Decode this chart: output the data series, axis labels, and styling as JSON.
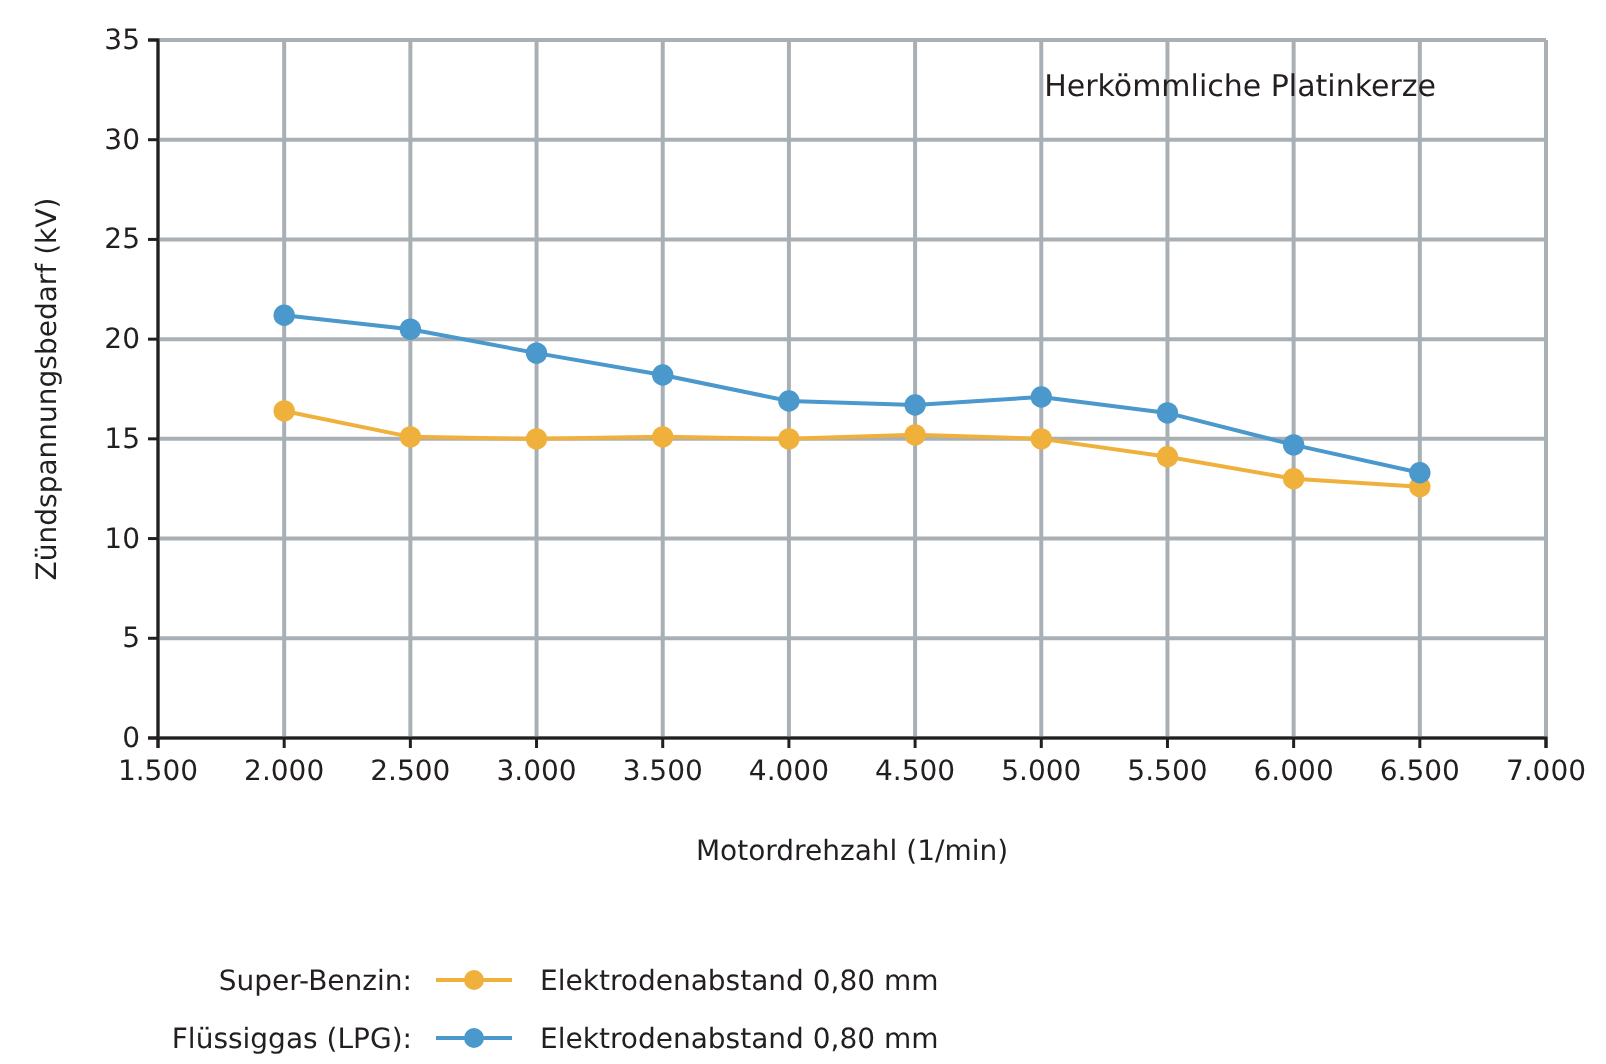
{
  "chart_data": {
    "type": "line",
    "xlabel": "Motordrehzahl (1/min)",
    "ylabel": "Zündspannungsbedarf (kV)",
    "annotations": [
      "Herkömmliche Platinkerze",
      "Super-Benzin:",
      "Flüssiggas (LPG):"
    ],
    "x": [
      2000,
      2500,
      3000,
      3500,
      4000,
      4500,
      5000,
      5500,
      6000,
      6500
    ],
    "series": [
      {
        "name": "Elektrodenabstand 0,80 mm",
        "color": "#f0b03c",
        "values": [
          16.4,
          15.1,
          15.0,
          15.1,
          15.0,
          15.2,
          15.0,
          14.1,
          13.0,
          12.6
        ]
      },
      {
        "name": "Elektrodenabstand 0,80 mm",
        "color": "#4a98cc",
        "values": [
          21.2,
          20.5,
          19.3,
          18.2,
          16.9,
          16.7,
          17.1,
          16.3,
          14.7,
          13.3
        ]
      }
    ],
    "xlim": [
      1500,
      7000
    ],
    "xticks": [
      {
        "value": 1500,
        "label": "1.500"
      },
      {
        "value": 2000,
        "label": "2.000"
      },
      {
        "value": 2500,
        "label": "2.500"
      },
      {
        "value": 3000,
        "label": "3.000"
      },
      {
        "value": 3500,
        "label": "3.500"
      },
      {
        "value": 4000,
        "label": "4.000"
      },
      {
        "value": 4500,
        "label": "4.500"
      },
      {
        "value": 5000,
        "label": "5.000"
      },
      {
        "value": 5500,
        "label": "5.500"
      },
      {
        "value": 6000,
        "label": "6.000"
      },
      {
        "value": 6500,
        "label": "6.500"
      },
      {
        "value": 7000,
        "label": "7.000"
      }
    ],
    "ylim": [
      0,
      35
    ],
    "yticks": [
      0,
      5,
      10,
      15,
      20,
      25,
      30,
      35
    ],
    "grid": true,
    "legend": "bottom",
    "marker": "circle",
    "line_style": "solid"
  }
}
